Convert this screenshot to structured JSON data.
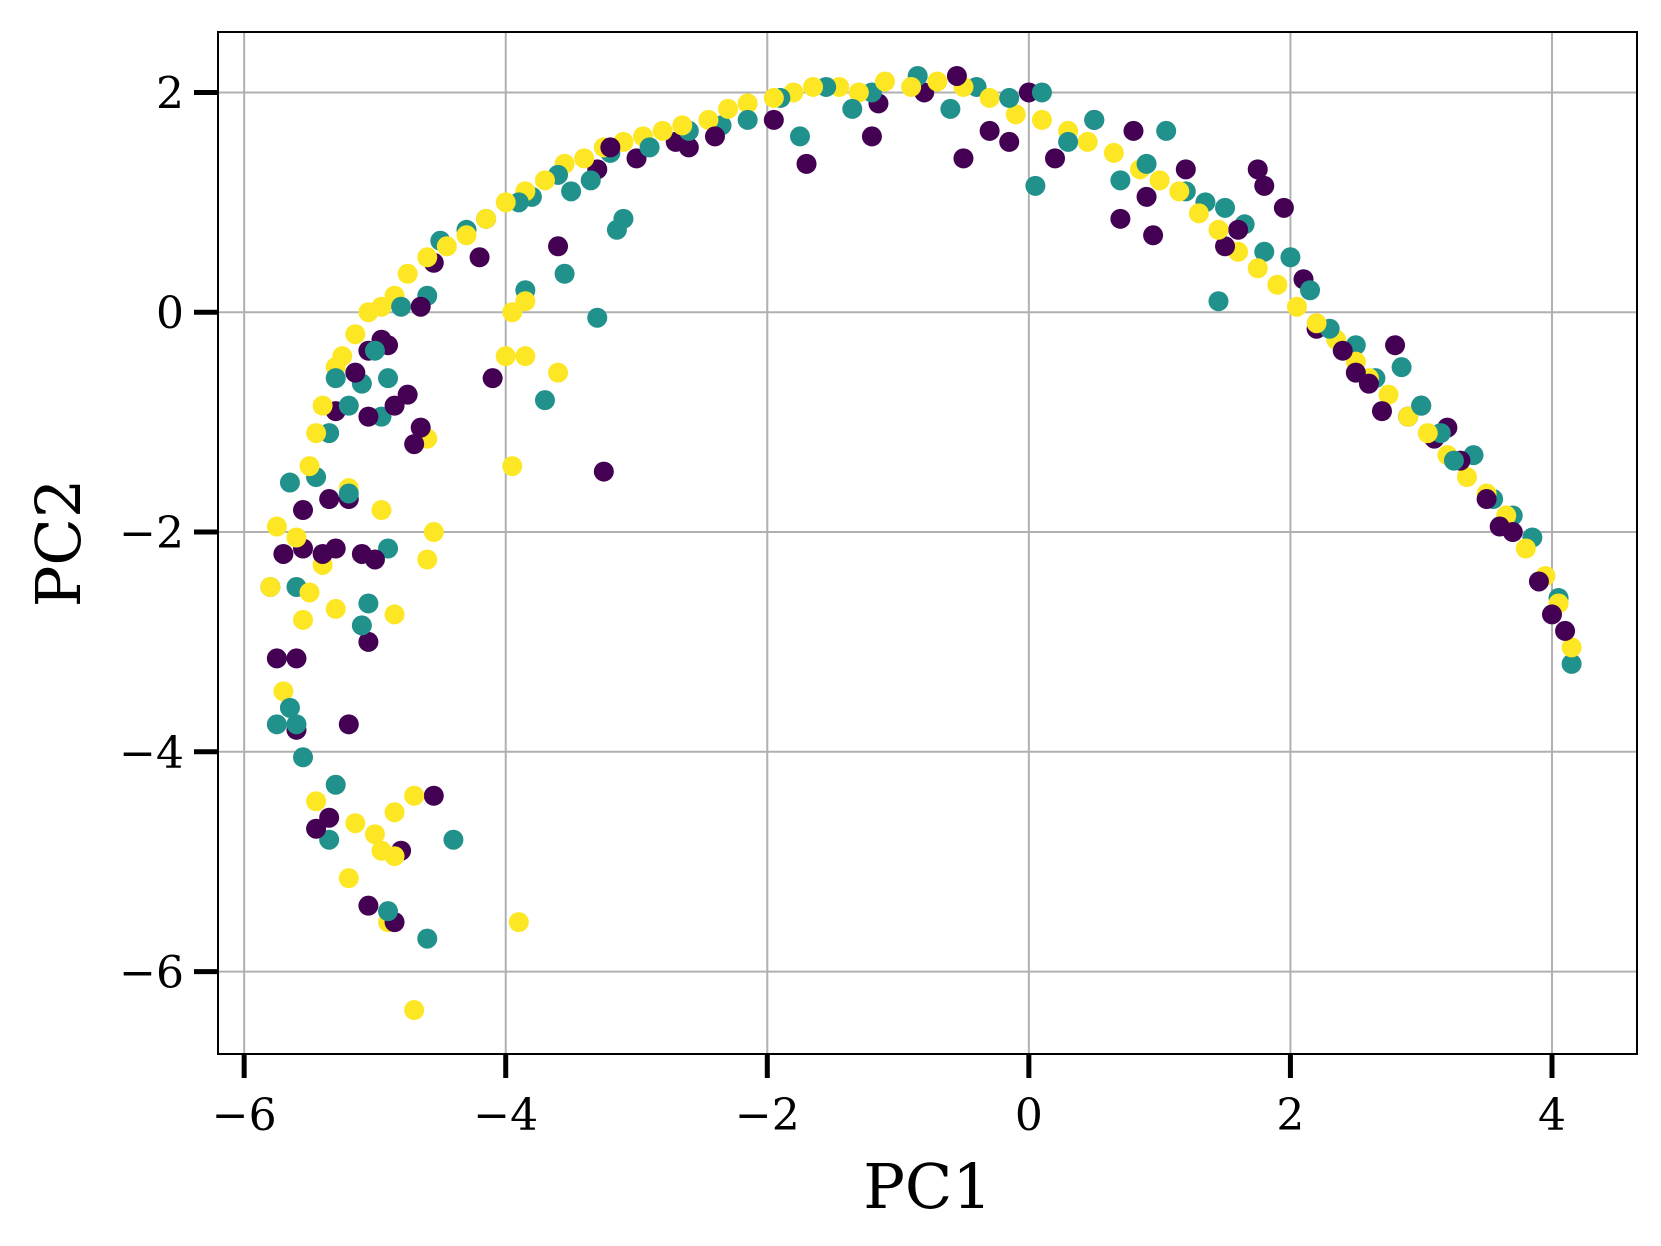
{
  "chart_data": {
    "type": "scatter",
    "title": "",
    "xlabel": "PC1",
    "ylabel": "PC2",
    "xlim": [
      -6.2,
      4.65
    ],
    "ylim": [
      -6.75,
      2.55
    ],
    "xticks": [
      -6,
      -4,
      -2,
      0,
      2,
      4
    ],
    "xtick_labels": [
      "−6",
      "−4",
      "−2",
      "0",
      "2",
      "4"
    ],
    "yticks": [
      -6,
      -4,
      -2,
      0,
      2
    ],
    "ytick_labels": [
      "−6",
      "−4",
      "−2",
      "0",
      "2"
    ],
    "grid": true,
    "legend": "none",
    "colors": [
      "#440154",
      "#21918c",
      "#fde725"
    ],
    "marker_radius_note": "filled circles",
    "series": [
      {
        "color": "#440154",
        "x": [
          -5.7,
          -5.55,
          -5.4,
          -5.3,
          -5.2,
          -5.15,
          -5.05,
          -4.95,
          -4.9,
          -4.85,
          -4.75,
          -4.7,
          -4.65,
          -4.55,
          -4.2,
          -4.1,
          -3.6,
          -3.3,
          -3.2,
          -3.0,
          -2.7,
          -2.6,
          -2.4,
          -1.95,
          -1.7,
          -1.2,
          -1.15,
          -0.8,
          -0.55,
          -0.5,
          -0.3,
          -0.15,
          0.0,
          0.2,
          0.5,
          0.7,
          0.8,
          0.9,
          0.95,
          1.2,
          1.5,
          1.6,
          1.75,
          1.8,
          1.95,
          2.1,
          2.2,
          2.4,
          2.5,
          2.6,
          2.7,
          2.8,
          2.9,
          3.0,
          3.1,
          3.2,
          3.3,
          3.5,
          3.6,
          3.7,
          3.9,
          4.0,
          4.1,
          -5.75,
          -5.6,
          -5.55,
          -5.35,
          -5.1,
          -5.0,
          -5.05,
          -4.65,
          -5.05,
          -5.35,
          -5.6,
          -5.2,
          -5.05,
          -3.25,
          -4.55,
          -4.85,
          -4.8,
          -5.45,
          -5.3
        ],
        "y": [
          -2.2,
          -1.8,
          -2.2,
          -0.9,
          -1.7,
          -0.55,
          -0.35,
          -0.25,
          -0.3,
          -0.85,
          -0.75,
          -1.2,
          0.05,
          0.45,
          0.5,
          -0.6,
          0.6,
          1.3,
          1.5,
          1.4,
          1.55,
          1.5,
          1.6,
          1.75,
          1.35,
          1.6,
          1.9,
          2.0,
          2.15,
          1.4,
          1.65,
          1.55,
          2.0,
          1.4,
          1.75,
          0.85,
          1.65,
          1.05,
          0.7,
          1.3,
          0.6,
          0.75,
          1.3,
          1.15,
          0.95,
          0.3,
          -0.15,
          -0.35,
          -0.55,
          -0.65,
          -0.9,
          -0.3,
          -0.95,
          -0.85,
          -1.15,
          -1.05,
          -1.35,
          -1.7,
          -1.95,
          -2.0,
          -2.45,
          -2.75,
          -2.9,
          -3.15,
          -3.15,
          -2.15,
          -1.7,
          -2.2,
          -2.25,
          -3.0,
          -1.05,
          -0.95,
          -4.6,
          -3.8,
          -3.75,
          -5.4,
          -1.45,
          -4.4,
          -5.55,
          -4.9,
          -4.7,
          -2.15
        ]
      },
      {
        "color": "#21918c",
        "x": [
          -5.8,
          -5.65,
          -5.6,
          -5.55,
          -5.45,
          -5.35,
          -5.3,
          -5.2,
          -5.1,
          -5.0,
          -4.9,
          -4.8,
          -4.6,
          -4.5,
          -4.3,
          -4.15,
          -3.9,
          -3.8,
          -3.6,
          -3.5,
          -3.35,
          -3.2,
          -3.1,
          -2.9,
          -2.6,
          -2.35,
          -2.15,
          -1.9,
          -1.75,
          -1.55,
          -1.35,
          -1.2,
          -0.85,
          -0.6,
          -0.4,
          -0.15,
          0.1,
          0.3,
          0.5,
          0.7,
          0.9,
          1.05,
          1.2,
          1.35,
          1.5,
          1.65,
          1.8,
          2.0,
          2.15,
          2.3,
          2.5,
          2.65,
          2.85,
          3.0,
          3.15,
          3.25,
          3.4,
          3.55,
          3.7,
          3.85,
          4.05,
          4.15,
          -5.6,
          -5.65,
          -5.2,
          -5.05,
          -5.1,
          -4.9,
          -4.95,
          -5.35,
          -5.3,
          -4.4,
          -4.6,
          -4.9,
          -3.55,
          -3.3,
          -3.85,
          -3.7,
          -3.15,
          0.05,
          1.45,
          -5.75
        ],
        "y": [
          -2.5,
          -3.6,
          -3.75,
          -4.05,
          -1.5,
          -1.1,
          -0.6,
          -0.85,
          -0.65,
          -0.35,
          -0.6,
          0.05,
          0.15,
          0.65,
          0.75,
          0.85,
          1.0,
          1.05,
          1.25,
          1.1,
          1.2,
          1.45,
          0.85,
          1.5,
          1.65,
          1.7,
          1.75,
          1.95,
          1.6,
          2.05,
          1.85,
          2.0,
          2.15,
          1.85,
          2.05,
          1.95,
          2.0,
          1.55,
          1.75,
          1.2,
          1.35,
          1.65,
          1.1,
          1.0,
          0.95,
          0.8,
          0.55,
          0.5,
          0.2,
          -0.15,
          -0.3,
          -0.6,
          -0.5,
          -0.85,
          -1.1,
          -1.35,
          -1.3,
          -1.7,
          -1.85,
          -2.05,
          -2.6,
          -3.2,
          -2.5,
          -1.55,
          -1.65,
          -2.65,
          -2.85,
          -2.15,
          -0.95,
          -4.8,
          -4.3,
          -4.8,
          -5.7,
          -5.45,
          0.35,
          -0.05,
          0.2,
          -0.8,
          0.75,
          1.15,
          0.1,
          -3.75
        ]
      },
      {
        "color": "#fde725",
        "x": [
          -5.75,
          -5.6,
          -5.5,
          -5.45,
          -5.4,
          -5.3,
          -5.25,
          -5.15,
          -5.05,
          -4.95,
          -4.85,
          -4.75,
          -4.6,
          -4.45,
          -4.3,
          -4.15,
          -4.0,
          -3.85,
          -3.7,
          -3.55,
          -3.4,
          -3.25,
          -3.1,
          -2.95,
          -2.8,
          -2.65,
          -2.45,
          -2.3,
          -2.15,
          -1.95,
          -1.8,
          -1.65,
          -1.45,
          -1.3,
          -1.1,
          -0.9,
          -0.7,
          -0.5,
          -0.3,
          -0.1,
          0.1,
          0.3,
          0.45,
          0.65,
          0.85,
          1.0,
          1.15,
          1.3,
          1.45,
          1.6,
          1.75,
          1.9,
          2.05,
          2.2,
          2.35,
          2.5,
          2.6,
          2.75,
          2.9,
          3.05,
          3.2,
          3.35,
          3.5,
          3.65,
          3.8,
          3.95,
          4.05,
          4.15,
          -5.8,
          -5.7,
          -5.55,
          -5.5,
          -5.4,
          -5.3,
          -5.2,
          -4.95,
          -4.85,
          -4.6,
          -4.6,
          -4.55,
          -4.0,
          -3.95,
          -3.85,
          -3.6,
          -3.95,
          -3.85,
          -4.85,
          -4.85,
          -5.45,
          -5.15,
          -5.2,
          -5.0,
          -4.95,
          -4.9,
          -3.9,
          -4.7,
          -4.7
        ],
        "y": [
          -1.95,
          -2.05,
          -1.4,
          -1.1,
          -0.85,
          -0.5,
          -0.4,
          -0.2,
          0.0,
          0.05,
          0.15,
          0.35,
          0.5,
          0.6,
          0.7,
          0.85,
          1.0,
          1.1,
          1.2,
          1.35,
          1.4,
          1.5,
          1.55,
          1.6,
          1.65,
          1.7,
          1.75,
          1.85,
          1.9,
          1.95,
          2.0,
          2.05,
          2.05,
          2.0,
          2.1,
          2.05,
          2.1,
          2.05,
          1.95,
          1.8,
          1.75,
          1.65,
          1.55,
          1.45,
          1.3,
          1.2,
          1.1,
          0.9,
          0.75,
          0.55,
          0.4,
          0.25,
          0.05,
          -0.1,
          -0.25,
          -0.45,
          -0.6,
          -0.75,
          -0.95,
          -1.1,
          -1.3,
          -1.5,
          -1.65,
          -1.85,
          -2.15,
          -2.4,
          -2.65,
          -3.05,
          -2.5,
          -3.45,
          -2.8,
          -2.55,
          -2.3,
          -2.7,
          -1.6,
          -1.8,
          -2.75,
          -1.15,
          -2.25,
          -2.0,
          -0.4,
          -1.4,
          0.1,
          -0.55,
          0.0,
          -0.4,
          -4.55,
          -4.95,
          -4.45,
          -4.65,
          -5.15,
          -4.75,
          -4.9,
          -5.55,
          -5.55,
          -6.35,
          -4.4
        ]
      }
    ]
  }
}
